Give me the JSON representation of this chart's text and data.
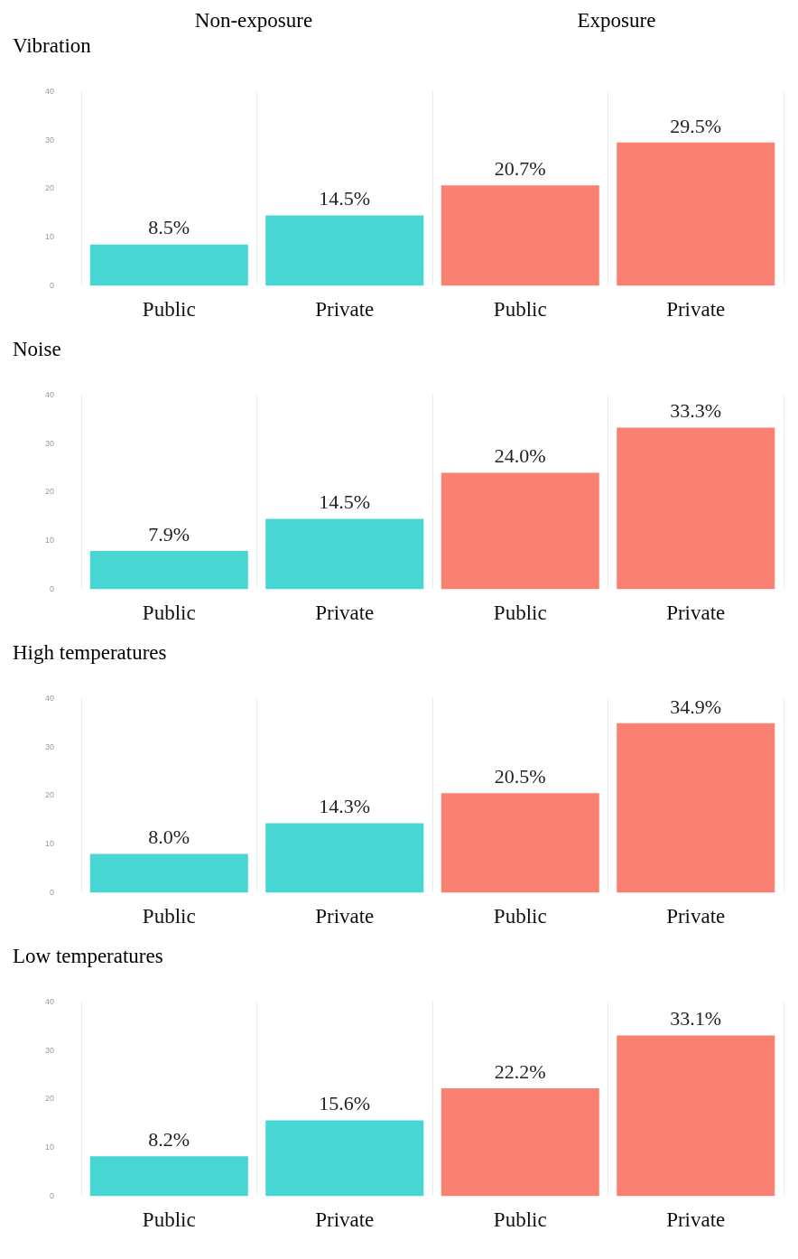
{
  "chart_data": [
    {
      "type": "bar",
      "title": "Vibration",
      "annotations": [
        "Non-exposure",
        "Exposure"
      ],
      "categories": [
        "Public",
        "Private",
        "Public",
        "Private"
      ],
      "values": [
        8.5,
        14.5,
        20.7,
        29.5
      ],
      "value_labels": [
        "8.5%",
        "14.5%",
        "20.7%",
        "29.5%"
      ],
      "colors": [
        "#48d6d2",
        "#48d6d2",
        "#fa8072",
        "#fa8072"
      ],
      "ylim": [
        0,
        40
      ],
      "yticks": [
        0,
        10,
        20,
        30,
        40
      ],
      "grid": "x",
      "legend": false
    },
    {
      "type": "bar",
      "title": "Noise",
      "categories": [
        "Public",
        "Private",
        "Public",
        "Private"
      ],
      "values": [
        7.9,
        14.5,
        24.0,
        33.3
      ],
      "value_labels": [
        "7.9%",
        "14.5%",
        "24.0%",
        "33.3%"
      ],
      "colors": [
        "#48d6d2",
        "#48d6d2",
        "#fa8072",
        "#fa8072"
      ],
      "ylim": [
        0,
        40
      ],
      "yticks": [
        0,
        10,
        20,
        30,
        40
      ],
      "grid": "x",
      "legend": false
    },
    {
      "type": "bar",
      "title": "High  temperatures",
      "categories": [
        "Public",
        "Private",
        "Public",
        "Private"
      ],
      "values": [
        8.0,
        14.3,
        20.5,
        34.9
      ],
      "value_labels": [
        "8.0%",
        "14.3%",
        "20.5%",
        "34.9%"
      ],
      "colors": [
        "#48d6d2",
        "#48d6d2",
        "#fa8072",
        "#fa8072"
      ],
      "ylim": [
        0,
        40
      ],
      "yticks": [
        0,
        10,
        20,
        30,
        40
      ],
      "grid": "x",
      "legend": false
    },
    {
      "type": "bar",
      "title": "Low  temperatures",
      "categories": [
        "Public",
        "Private",
        "Public",
        "Private"
      ],
      "values": [
        8.2,
        15.6,
        22.2,
        33.1
      ],
      "value_labels": [
        "8.2%",
        "15.6%",
        "22.2%",
        "33.1%"
      ],
      "colors": [
        "#48d6d2",
        "#48d6d2",
        "#fa8072",
        "#fa8072"
      ],
      "ylim": [
        0,
        40
      ],
      "yticks": [
        0,
        10,
        20,
        30,
        40
      ],
      "grid": "x",
      "legend": false
    }
  ]
}
